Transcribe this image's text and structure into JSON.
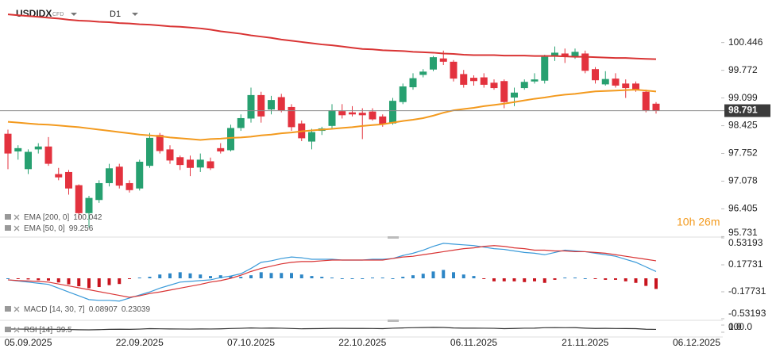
{
  "header": {
    "symbol": "USDIDX",
    "instrument_type": "CFD",
    "timeframe": "D1"
  },
  "countdown": "10h 26m",
  "chart_data": [
    {
      "type": "candlestick",
      "categories": [
        null,
        null,
        "05.09.2025",
        null,
        null,
        null,
        null,
        null,
        null,
        null,
        null,
        null,
        null,
        "22.09.2025",
        null,
        null,
        null,
        null,
        null,
        null,
        null,
        null,
        null,
        null,
        "07.10.2025",
        null,
        null,
        null,
        null,
        null,
        null,
        null,
        null,
        null,
        null,
        "22.10.2025",
        null,
        null,
        null,
        null,
        null,
        null,
        null,
        null,
        null,
        null,
        "06.11.2025",
        null,
        null,
        null,
        null,
        null,
        null,
        null,
        null,
        null,
        null,
        "21.11.2025",
        null,
        null,
        null,
        null,
        null,
        null,
        null,
        null,
        null,
        null,
        "06.12.2025"
      ],
      "open": [
        98.23,
        97.8,
        97.37,
        97.85,
        97.92,
        97.25,
        97.3,
        96.98,
        96.3,
        96.62,
        97.03,
        97.43,
        97.03,
        96.9,
        97.45,
        98.2,
        97.85,
        97.66,
        97.6,
        97.41,
        97.56,
        97.88,
        97.83,
        98.37,
        98.6,
        99.17,
        98.82,
        99.12,
        98.88,
        98.48,
        98.04,
        98.3,
        98.42,
        98.78,
        98.75,
        98.74,
        98.77,
        98.65,
        98.48,
        99.0,
        99.36,
        99.66,
        99.79,
        100.06,
        99.98,
        99.68,
        99.59,
        99.6,
        99.47,
        99.51,
        99.11,
        99.34,
        99.5,
        99.52,
        100.12,
        100.18,
        100.1,
        100.18,
        99.8,
        99.43,
        99.57,
        99.45,
        99.45,
        99.25,
        98.96,
        null,
        null,
        null,
        null
      ],
      "high": [
        98.33,
        97.95,
        97.85,
        98.0,
        98.15,
        97.4,
        97.35,
        97.0,
        96.72,
        97.1,
        97.5,
        97.5,
        97.1,
        97.6,
        98.25,
        98.25,
        97.95,
        97.7,
        97.7,
        97.75,
        97.65,
        98.0,
        98.45,
        98.7,
        99.35,
        99.25,
        99.15,
        99.2,
        98.95,
        98.55,
        98.35,
        98.4,
        98.95,
        98.95,
        98.9,
        98.85,
        98.85,
        98.7,
        99.1,
        99.45,
        99.7,
        99.8,
        100.12,
        100.25,
        100.02,
        99.78,
        99.65,
        99.7,
        99.55,
        99.55,
        99.35,
        99.55,
        99.7,
        100.15,
        100.35,
        100.3,
        100.3,
        100.25,
        99.85,
        99.75,
        99.7,
        99.55,
        99.5,
        99.3,
        99.0,
        null,
        null,
        null,
        null
      ],
      "low": [
        97.37,
        97.6,
        97.25,
        97.75,
        97.45,
        97.1,
        96.75,
        96.15,
        95.95,
        96.55,
        96.95,
        96.9,
        96.8,
        96.85,
        97.4,
        97.75,
        97.5,
        97.35,
        97.2,
        97.3,
        97.35,
        97.75,
        97.8,
        98.3,
        98.5,
        98.5,
        98.7,
        98.75,
        98.3,
        98.05,
        97.85,
        98.2,
        98.35,
        98.6,
        98.65,
        98.1,
        98.55,
        98.4,
        98.45,
        98.95,
        99.3,
        99.6,
        99.75,
        99.9,
        99.5,
        99.35,
        99.4,
        99.35,
        99.3,
        98.85,
        98.9,
        99.3,
        99.45,
        99.45,
        100.0,
        99.95,
        100.05,
        99.7,
        99.45,
        99.4,
        99.35,
        99.1,
        99.25,
        98.75,
        98.72,
        null,
        null,
        null,
        null
      ],
      "close": [
        97.75,
        97.88,
        97.79,
        97.92,
        97.5,
        97.17,
        96.9,
        96.3,
        96.67,
        97.03,
        97.39,
        96.97,
        96.86,
        97.55,
        98.13,
        97.81,
        97.58,
        97.47,
        97.4,
        97.6,
        97.39,
        97.8,
        98.37,
        98.61,
        99.17,
        98.65,
        99.05,
        98.8,
        98.39,
        98.12,
        98.27,
        98.36,
        98.8,
        98.68,
        98.7,
        98.68,
        98.58,
        98.46,
        99.03,
        99.38,
        99.58,
        99.74,
        100.09,
        99.98,
        99.57,
        99.42,
        99.51,
        99.42,
        99.34,
        99.0,
        99.23,
        99.49,
        99.55,
        100.1,
        100.2,
        100.1,
        100.22,
        99.76,
        99.53,
        99.56,
        99.4,
        99.34,
        99.3,
        98.8,
        98.79,
        null,
        null,
        null,
        null
      ],
      "up_color": "#27a070",
      "down_color": "#e3323e",
      "series": [
        {
          "name": "EMA [200, 0]",
          "color": "#d93434",
          "values": [
            101.13,
            101.11,
            101.09,
            101.07,
            101.05,
            101.03,
            101.0,
            100.98,
            100.97,
            100.95,
            100.94,
            100.92,
            100.91,
            100.89,
            100.88,
            100.86,
            100.84,
            100.83,
            100.81,
            100.79,
            100.76,
            100.72,
            100.69,
            100.66,
            100.62,
            100.59,
            100.56,
            100.52,
            100.49,
            100.46,
            100.43,
            100.4,
            100.38,
            100.35,
            100.32,
            100.29,
            100.28,
            100.26,
            100.25,
            100.24,
            100.22,
            100.21,
            100.2,
            100.18,
            100.17,
            100.15,
            100.14,
            100.14,
            100.14,
            100.13,
            100.13,
            100.13,
            100.12,
            100.12,
            100.12,
            100.11,
            100.1,
            100.1,
            100.09,
            100.08,
            100.07,
            100.07,
            100.06,
            100.05,
            100.042,
            null,
            null,
            null,
            null
          ]
        },
        {
          "name": "EMA [50, 0]",
          "color": "#f39a1e",
          "values": [
            98.52,
            98.5,
            98.48,
            98.46,
            98.45,
            98.43,
            98.41,
            98.39,
            98.36,
            98.33,
            98.3,
            98.27,
            98.24,
            98.21,
            98.19,
            98.17,
            98.14,
            98.12,
            98.1,
            98.08,
            98.1,
            98.11,
            98.13,
            98.14,
            98.16,
            98.19,
            98.21,
            98.24,
            98.26,
            98.29,
            98.31,
            98.33,
            98.35,
            98.37,
            98.39,
            98.42,
            98.44,
            98.46,
            98.5,
            98.54,
            98.57,
            98.61,
            98.67,
            98.74,
            98.8,
            98.83,
            98.86,
            98.9,
            98.93,
            98.96,
            99.0,
            99.04,
            99.08,
            99.11,
            99.15,
            99.18,
            99.2,
            99.23,
            99.26,
            99.27,
            99.28,
            99.29,
            99.3,
            99.28,
            99.256,
            null,
            null,
            null,
            null
          ]
        }
      ],
      "last_price": 98.791,
      "ylim": [
        95.7,
        101.48
      ],
      "yticks": [
        100.446,
        99.772,
        99.099,
        98.425,
        97.752,
        97.078,
        96.405,
        95.731
      ]
    },
    {
      "type": "macd",
      "legend": "MACD [14, 30, 7]",
      "series": [
        {
          "color": "#3a9ad9",
          "values": [
            -0.02,
            -0.035,
            -0.05,
            -0.065,
            -0.08,
            -0.13,
            -0.18,
            -0.23,
            -0.28,
            -0.29,
            -0.29,
            -0.3,
            -0.26,
            -0.22,
            -0.18,
            -0.13,
            -0.09,
            -0.05,
            -0.04,
            -0.03,
            -0.02,
            0.01,
            0.03,
            0.06,
            0.13,
            0.21,
            0.23,
            0.26,
            0.28,
            0.27,
            0.25,
            0.25,
            0.25,
            0.24,
            0.24,
            0.24,
            0.25,
            0.25,
            0.26,
            0.3,
            0.33,
            0.37,
            0.42,
            0.46,
            0.45,
            0.44,
            0.43,
            0.41,
            0.39,
            0.38,
            0.36,
            0.34,
            0.33,
            0.31,
            0.34,
            0.37,
            0.36,
            0.35,
            0.33,
            0.31,
            0.29,
            0.25,
            0.21,
            0.15,
            0.08907,
            null,
            null,
            null,
            null
          ]
        },
        {
          "color": "#d93434",
          "values": [
            -0.02,
            -0.03,
            -0.035,
            -0.04,
            -0.05,
            -0.075,
            -0.1,
            -0.125,
            -0.15,
            -0.175,
            -0.2,
            -0.225,
            -0.25,
            -0.23,
            -0.2,
            -0.18,
            -0.155,
            -0.13,
            -0.105,
            -0.08,
            -0.05,
            -0.03,
            0.0,
            0.04,
            0.09,
            0.13,
            0.16,
            0.19,
            0.21,
            0.22,
            0.22,
            0.23,
            0.24,
            0.24,
            0.24,
            0.24,
            0.24,
            0.24,
            0.26,
            0.28,
            0.29,
            0.31,
            0.33,
            0.35,
            0.37,
            0.39,
            0.4,
            0.42,
            0.43,
            0.42,
            0.4,
            0.39,
            0.37,
            0.37,
            0.36,
            0.36,
            0.35,
            0.35,
            0.34,
            0.33,
            0.31,
            0.29,
            0.27,
            0.25,
            0.23039,
            null,
            null,
            null,
            null
          ]
        }
      ],
      "histogram": {
        "up_color": "#2d86c6",
        "down_color": "#c8141e",
        "values": [
          0,
          -0.005,
          -0.015,
          -0.025,
          -0.03,
          -0.055,
          -0.08,
          -0.105,
          -0.13,
          -0.115,
          -0.09,
          -0.075,
          -0.01,
          0.01,
          0.02,
          0.05,
          0.065,
          0.08,
          0.065,
          0.05,
          0.03,
          0.04,
          0.03,
          0.02,
          0.04,
          0.08,
          0.07,
          0.07,
          0.07,
          0.05,
          0.03,
          0.02,
          0.01,
          0,
          0,
          0,
          0.01,
          0.01,
          0,
          0.02,
          0.04,
          0.06,
          0.09,
          0.11,
          0.08,
          0.05,
          0.03,
          -0.01,
          -0.04,
          -0.04,
          -0.04,
          -0.05,
          -0.04,
          -0.06,
          -0.02,
          0.01,
          0.01,
          0,
          -0.01,
          -0.02,
          -0.02,
          -0.04,
          -0.06,
          -0.1,
          -0.14,
          null,
          null,
          null,
          null
        ]
      },
      "ylim": [
        -0.53193,
        0.53193
      ],
      "yticks": [
        0.53193,
        0.17731,
        -0.17731,
        -0.53193
      ]
    },
    {
      "type": "line",
      "legend": "RSI [14]",
      "series": [
        {
          "color": "#333333",
          "values": [
            45,
            44,
            43,
            44,
            42,
            40,
            38,
            35,
            33,
            36,
            40,
            42,
            40,
            44,
            50,
            48,
            46,
            45,
            44,
            46,
            45,
            47,
            52,
            55,
            60,
            56,
            58,
            56,
            52,
            48,
            50,
            51,
            54,
            54,
            53,
            53,
            52,
            50,
            56,
            60,
            63,
            65,
            68,
            67,
            60,
            57,
            57,
            56,
            55,
            50,
            53,
            56,
            57,
            63,
            64,
            63,
            64,
            57,
            53,
            54,
            52,
            51,
            50,
            42,
            39.5,
            null,
            null,
            null,
            null
          ]
        }
      ],
      "ylim": [
        0,
        100
      ],
      "yticks": [
        {
          "value": 100,
          "label": "100.0"
        },
        {
          "value": 0,
          "label": "0.0"
        }
      ]
    }
  ]
}
